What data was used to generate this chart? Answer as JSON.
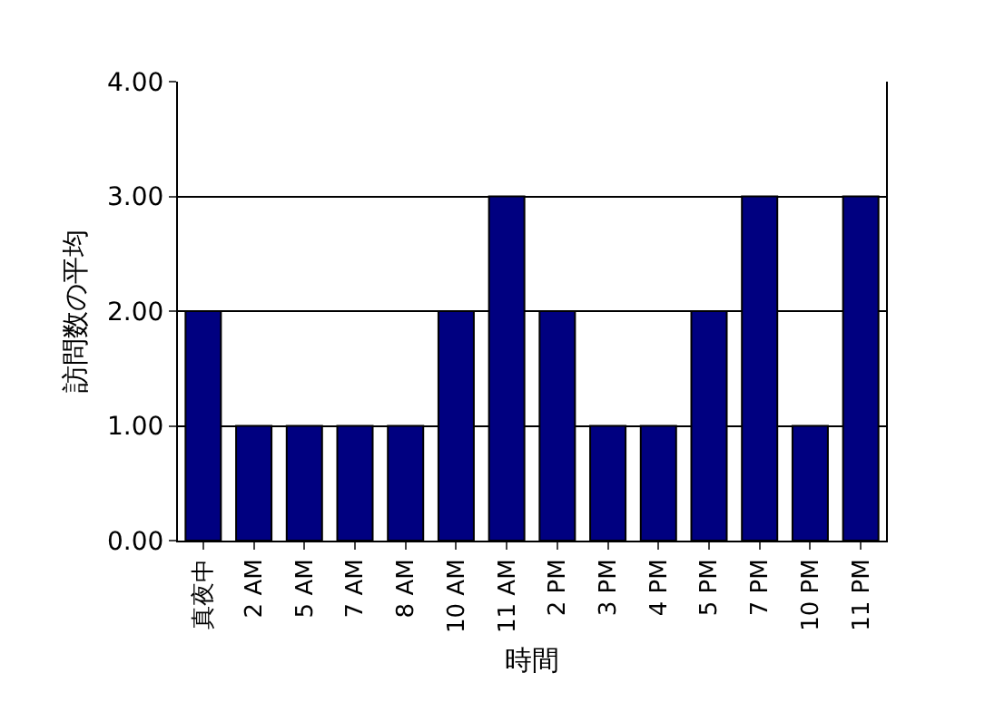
{
  "chart_data": {
    "type": "bar",
    "xlabel": "時間",
    "ylabel": "訪問数の平均",
    "categories": [
      "真夜中",
      "2 AM",
      "5 AM",
      "7 AM",
      "8 AM",
      "10 AM",
      "11 AM",
      "2 PM",
      "3 PM",
      "4 PM",
      "5 PM",
      "7 PM",
      "10 PM",
      "11 PM"
    ],
    "values": [
      2,
      1,
      1,
      1,
      1,
      2,
      3,
      2,
      1,
      1,
      2,
      3,
      1,
      3
    ],
    "color": "#000080",
    "ylim": [
      0,
      4
    ],
    "yticks": [
      {
        "value": 0,
        "label": "0.00"
      },
      {
        "value": 1,
        "label": "1.00"
      },
      {
        "value": 2,
        "label": "2.00"
      },
      {
        "value": 3,
        "label": "3.00"
      },
      {
        "value": 4,
        "label": "4.00"
      }
    ],
    "grid": "y"
  }
}
